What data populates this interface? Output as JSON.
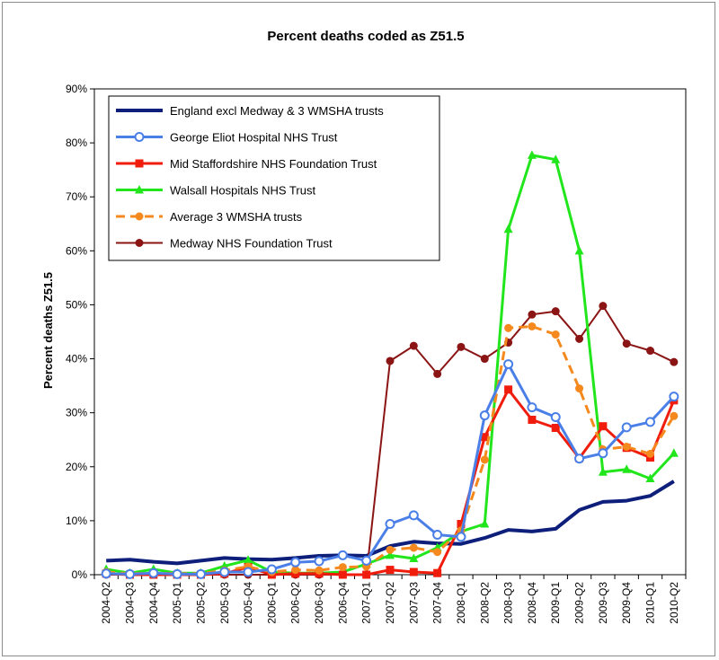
{
  "chart_data": {
    "type": "line",
    "title": "Percent deaths coded as Z51.5",
    "xlabel": "",
    "ylabel": "Percent deaths Z51.5",
    "ylim": [
      0,
      90
    ],
    "y_ticks": [
      "0%",
      "10%",
      "20%",
      "30%",
      "40%",
      "50%",
      "60%",
      "70%",
      "80%",
      "90%"
    ],
    "grid": false,
    "legend_position": "top-left",
    "categories": [
      "2004-Q2",
      "2004-Q3",
      "2004-Q4",
      "2005-Q1",
      "2005-Q2",
      "2005-Q3",
      "2005-Q4",
      "2006-Q1",
      "2006-Q2",
      "2006-Q3",
      "2006-Q4",
      "2007-Q1",
      "2007-Q2",
      "2007-Q3",
      "2007-Q4",
      "2008-Q1",
      "2008-Q2",
      "2008-Q3",
      "2008-Q4",
      "2009-Q1",
      "2009-Q2",
      "2009-Q3",
      "2009-Q4",
      "2010-Q1",
      "2010-Q2"
    ],
    "series": [
      {
        "name": "England excl Medway & 3 WMSHA trusts",
        "color": "#0d1f7a",
        "marker": "none",
        "dash": "none",
        "width": 4,
        "values": [
          2.6,
          2.8,
          2.4,
          2.1,
          2.6,
          3.1,
          2.9,
          2.8,
          3.1,
          3.5,
          3.6,
          3.5,
          5.3,
          6.1,
          5.8,
          5.7,
          6.8,
          8.3,
          8.0,
          8.5,
          12.0,
          13.5,
          13.7,
          14.6,
          17.3
        ]
      },
      {
        "name": "George Eliot Hospital NHS Trust",
        "color": "#4a7fe8",
        "marker": "circle-open",
        "dash": "none",
        "width": 3,
        "values": [
          0.2,
          0.1,
          0.3,
          0.1,
          0.1,
          0.5,
          0.5,
          1.0,
          2.3,
          2.5,
          3.6,
          2.6,
          9.4,
          11.0,
          7.4,
          7.0,
          29.5,
          39.0,
          31.0,
          29.2,
          21.5,
          22.5,
          27.3,
          28.3,
          33.0
        ]
      },
      {
        "name": "Mid Staffordshire NHS Foundation Trust",
        "color": "#f01c0c",
        "marker": "square",
        "dash": "none",
        "width": 3,
        "values": [
          0.2,
          0.0,
          0.0,
          0.0,
          0.0,
          0.2,
          1.4,
          0.0,
          0.2,
          0.2,
          0.0,
          0.0,
          0.9,
          0.5,
          0.3,
          9.4,
          25.5,
          34.3,
          28.7,
          27.2,
          21.6,
          27.5,
          23.5,
          21.7,
          32.3
        ]
      },
      {
        "name": "Walsall Hospitals NHS Trust",
        "color": "#22e61c",
        "marker": "triangle",
        "dash": "none",
        "width": 3,
        "values": [
          1.0,
          0.3,
          1.0,
          0.3,
          0.3,
          1.6,
          2.7,
          0.5,
          0.3,
          0.3,
          0.5,
          2.0,
          3.6,
          3.0,
          5.0,
          8.0,
          9.4,
          64.0,
          77.7,
          76.9,
          60.0,
          19.0,
          19.5,
          17.8,
          22.5
        ]
      },
      {
        "name": "Average 3 WMSHA trusts",
        "color": "#f5891e",
        "marker": "circle",
        "dash": "dash",
        "width": 3,
        "values": [
          0.5,
          0.2,
          0.3,
          0.2,
          0.2,
          0.8,
          1.5,
          0.5,
          0.9,
          0.8,
          1.4,
          1.5,
          4.6,
          5.0,
          4.2,
          8.2,
          21.3,
          45.7,
          46.0,
          44.5,
          34.5,
          23.2,
          23.7,
          22.4,
          29.4
        ]
      },
      {
        "name": "Medway NHS Foundation Trust",
        "color": "#8b1414",
        "marker": "circle",
        "dash": "none",
        "width": 2,
        "values": [
          0.0,
          0.0,
          0.0,
          0.0,
          0.0,
          0.0,
          0.0,
          0.0,
          0.0,
          0.0,
          0.0,
          0.0,
          39.6,
          42.4,
          37.2,
          42.2,
          40.0,
          43.0,
          48.2,
          48.8,
          43.7,
          49.8,
          42.8,
          41.5,
          39.4
        ]
      }
    ]
  }
}
